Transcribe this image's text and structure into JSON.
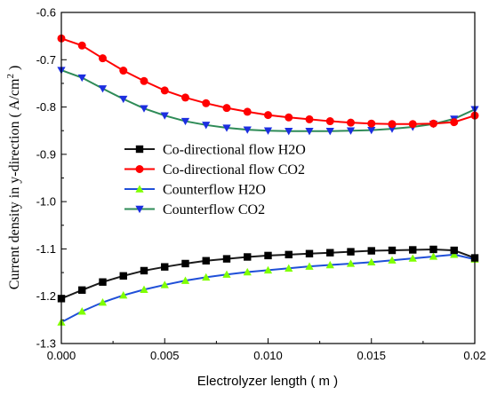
{
  "chart_data": {
    "type": "line",
    "xlabel": "Electrolyzer length ( m )",
    "ylabel_main": "Current density  in y-direction ( A/cm",
    "ylabel_sup": "2",
    "ylabel_end": " )",
    "xlim": [
      0.0,
      0.02
    ],
    "ylim": [
      -1.3,
      -0.6
    ],
    "xticks": [
      0.0,
      0.005,
      0.01,
      0.015,
      0.02
    ],
    "xtick_labels": [
      "0.000",
      "0.005",
      "0.010",
      "0.015",
      "0.02"
    ],
    "yticks": [
      -1.3,
      -1.2,
      -1.1,
      -1.0,
      -0.9,
      -0.8,
      -0.7,
      -0.6
    ],
    "ytick_labels": [
      "-1.3",
      "-1.2",
      "-1.1",
      "-1.0",
      "-0.9",
      "-0.8",
      "-0.7",
      "-0.6"
    ],
    "legend_position": "center-left",
    "x": [
      0.0,
      0.001,
      0.002,
      0.003,
      0.004,
      0.005,
      0.006,
      0.007,
      0.008,
      0.009,
      0.01,
      0.011,
      0.012,
      0.013,
      0.014,
      0.015,
      0.016,
      0.017,
      0.018,
      0.019,
      0.02
    ],
    "series": [
      {
        "name": "Co-directional flow H2O",
        "color": "#000000",
        "line_color": "#1a1a1a",
        "marker": "square",
        "values": [
          -1.205,
          -1.187,
          -1.17,
          -1.157,
          -1.146,
          -1.138,
          -1.131,
          -1.125,
          -1.121,
          -1.117,
          -1.114,
          -1.112,
          -1.11,
          -1.108,
          -1.106,
          -1.104,
          -1.103,
          -1.102,
          -1.101,
          -1.103,
          -1.119
        ]
      },
      {
        "name": "Co-directional flow CO2",
        "color": "#ff0000",
        "line_color": "#ff0000",
        "marker": "circle",
        "values": [
          -0.655,
          -0.67,
          -0.697,
          -0.723,
          -0.745,
          -0.765,
          -0.78,
          -0.792,
          -0.802,
          -0.81,
          -0.817,
          -0.822,
          -0.826,
          -0.83,
          -0.833,
          -0.835,
          -0.836,
          -0.836,
          -0.835,
          -0.832,
          -0.818
        ]
      },
      {
        "name": "Counterflow H2O",
        "color": "#7fff00",
        "line_color": "#1f4fd8",
        "marker": "triangle-up",
        "values": [
          -1.255,
          -1.232,
          -1.213,
          -1.198,
          -1.186,
          -1.176,
          -1.167,
          -1.16,
          -1.154,
          -1.149,
          -1.145,
          -1.141,
          -1.137,
          -1.134,
          -1.131,
          -1.128,
          -1.124,
          -1.12,
          -1.116,
          -1.112,
          -1.122
        ]
      },
      {
        "name": "Counterflow CO2",
        "color": "#1c2ee0",
        "line_color": "#2e8b57",
        "marker": "triangle-down",
        "values": [
          -0.722,
          -0.738,
          -0.761,
          -0.783,
          -0.803,
          -0.818,
          -0.83,
          -0.838,
          -0.844,
          -0.848,
          -0.85,
          -0.851,
          -0.851,
          -0.851,
          -0.85,
          -0.849,
          -0.846,
          -0.842,
          -0.836,
          -0.825,
          -0.805
        ]
      }
    ]
  }
}
